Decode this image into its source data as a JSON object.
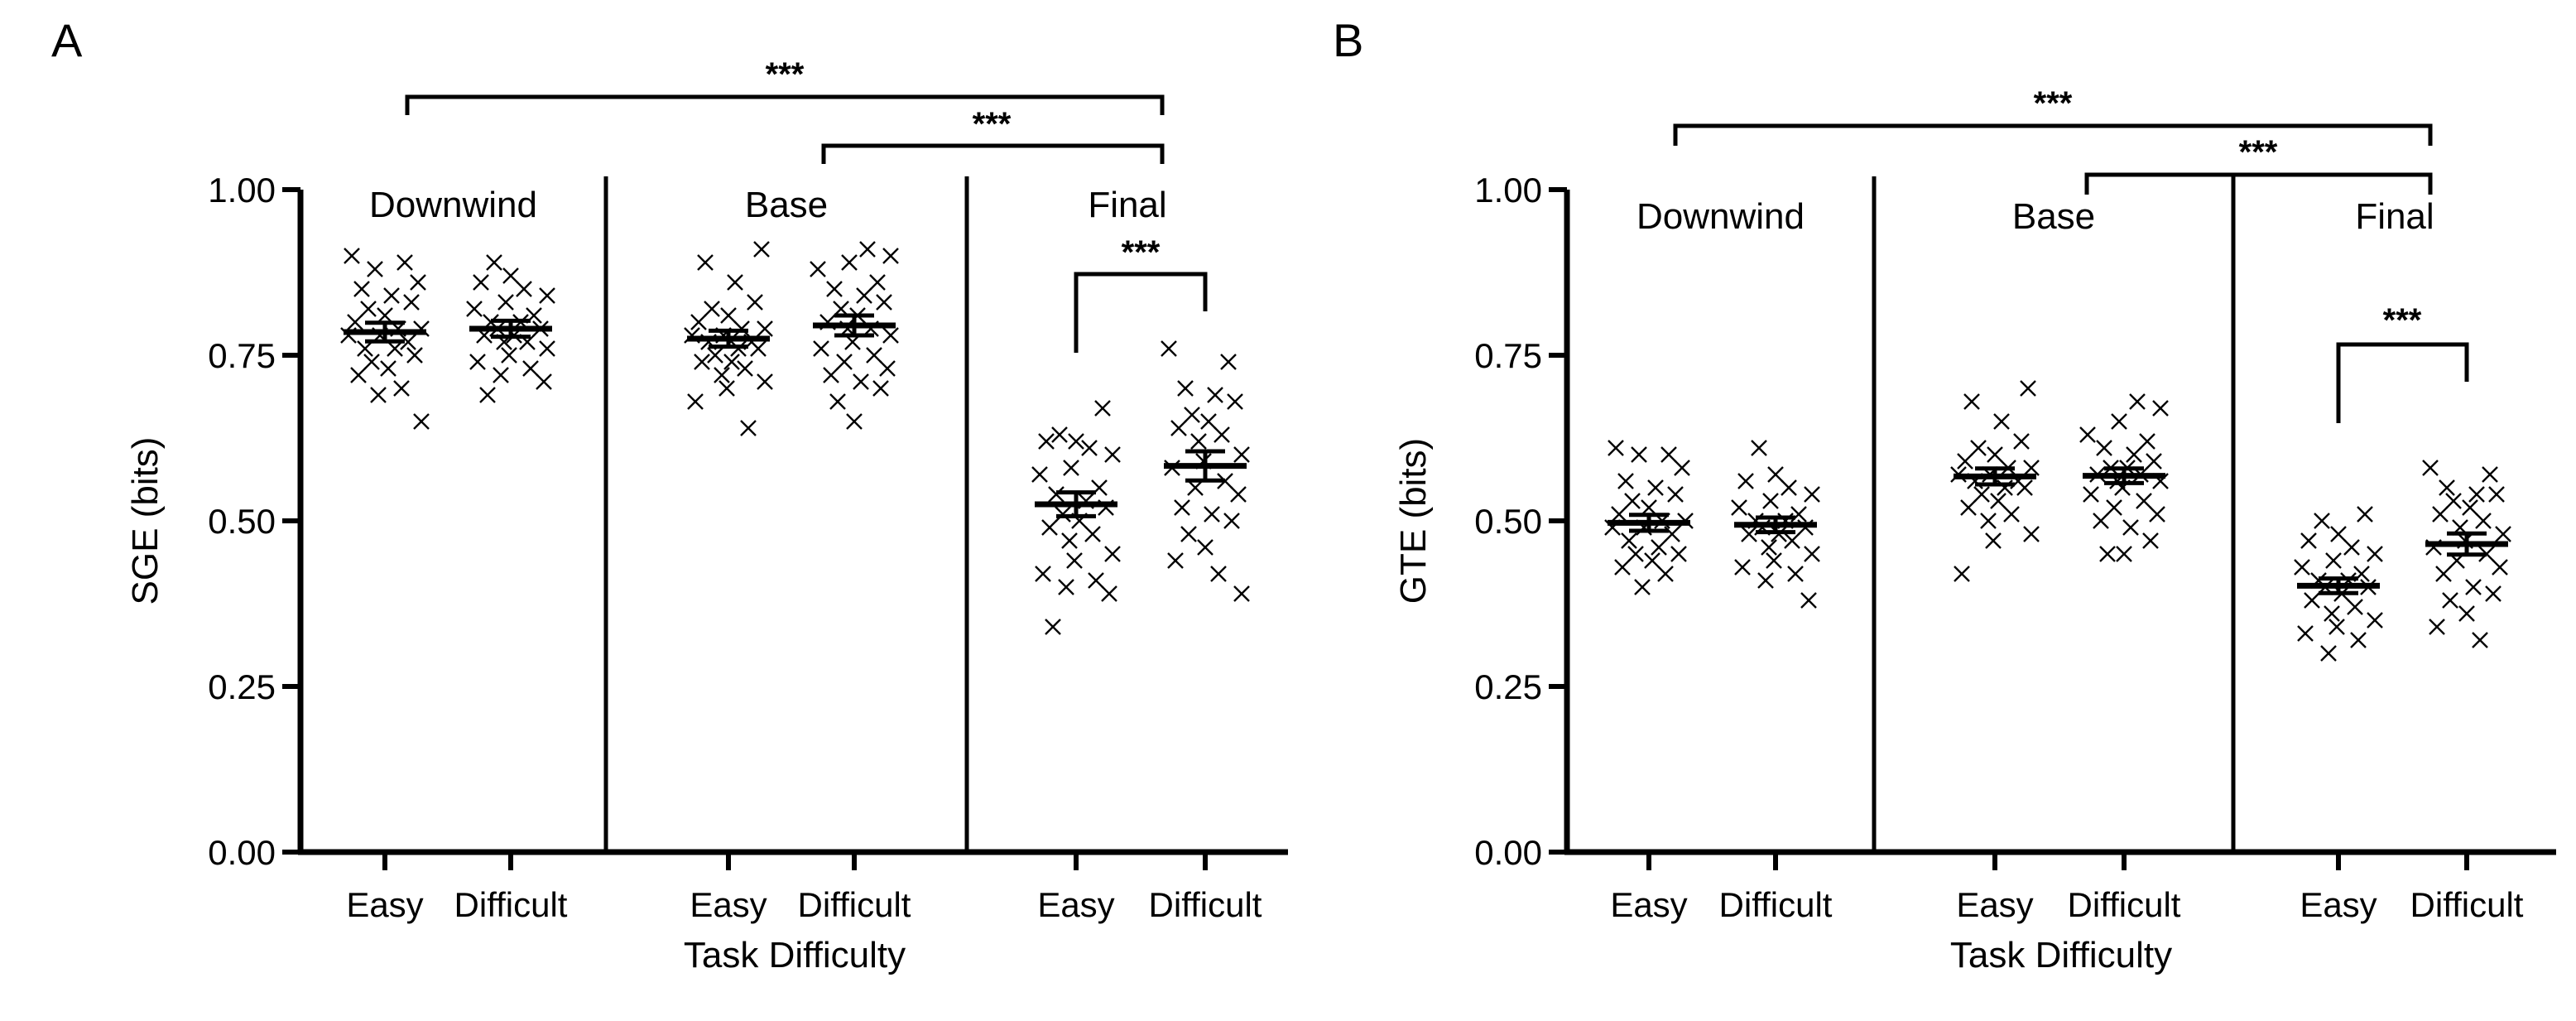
{
  "chart_data": [
    {
      "type": "scatter",
      "panel_label": "A",
      "ylabel": "SGE (bits)",
      "xlabel": "Task Difficulty",
      "ylim": [
        0,
        1
      ],
      "yticks": [
        "0.00",
        "0.25",
        "0.50",
        "0.75",
        "1.00"
      ],
      "segments": [
        {
          "name": "Downwind",
          "groups": [
            {
              "label": "Easy",
              "mean": 0.785,
              "sem": 0.014,
              "values": [
                0.9,
                0.89,
                0.88,
                0.86,
                0.85,
                0.84,
                0.83,
                0.82,
                0.81,
                0.8,
                0.79,
                0.79,
                0.78,
                0.78,
                0.77,
                0.76,
                0.76,
                0.75,
                0.74,
                0.73,
                0.72,
                0.7,
                0.69,
                0.65
              ]
            },
            {
              "label": "Difficult",
              "mean": 0.79,
              "sem": 0.012,
              "values": [
                0.89,
                0.87,
                0.86,
                0.85,
                0.84,
                0.83,
                0.82,
                0.81,
                0.8,
                0.8,
                0.79,
                0.79,
                0.78,
                0.78,
                0.77,
                0.77,
                0.76,
                0.75,
                0.74,
                0.73,
                0.72,
                0.71,
                0.69
              ]
            }
          ]
        },
        {
          "name": "Base",
          "groups": [
            {
              "label": "Easy",
              "mean": 0.775,
              "sem": 0.012,
              "values": [
                0.91,
                0.89,
                0.86,
                0.83,
                0.82,
                0.81,
                0.8,
                0.79,
                0.79,
                0.78,
                0.78,
                0.77,
                0.77,
                0.76,
                0.76,
                0.75,
                0.74,
                0.74,
                0.73,
                0.72,
                0.71,
                0.7,
                0.68,
                0.64
              ]
            },
            {
              "label": "Difficult",
              "mean": 0.795,
              "sem": 0.015,
              "values": [
                0.91,
                0.9,
                0.89,
                0.88,
                0.86,
                0.85,
                0.84,
                0.83,
                0.82,
                0.81,
                0.8,
                0.79,
                0.79,
                0.78,
                0.77,
                0.76,
                0.75,
                0.74,
                0.73,
                0.72,
                0.71,
                0.7,
                0.68,
                0.65
              ]
            }
          ]
        },
        {
          "name": "Final",
          "groups": [
            {
              "label": "Easy",
              "mean": 0.525,
              "sem": 0.018,
              "values": [
                0.67,
                0.63,
                0.62,
                0.62,
                0.61,
                0.6,
                0.58,
                0.57,
                0.55,
                0.54,
                0.53,
                0.52,
                0.51,
                0.5,
                0.49,
                0.48,
                0.47,
                0.45,
                0.44,
                0.42,
                0.41,
                0.4,
                0.39,
                0.34
              ]
            },
            {
              "label": "Difficult",
              "mean": 0.583,
              "sem": 0.022,
              "values": [
                0.76,
                0.74,
                0.7,
                0.69,
                0.68,
                0.66,
                0.65,
                0.64,
                0.63,
                0.62,
                0.6,
                0.59,
                0.58,
                0.56,
                0.55,
                0.54,
                0.52,
                0.51,
                0.5,
                0.48,
                0.46,
                0.44,
                0.42,
                0.39
              ]
            }
          ]
        }
      ],
      "significance": [
        {
          "label": "***",
          "from": "Downwind Easy",
          "to": "Final Difficult"
        },
        {
          "label": "***",
          "from": "Base Difficult",
          "to": "Final Difficult"
        },
        {
          "label": "***",
          "from": "Final Easy",
          "to": "Final Difficult"
        }
      ]
    },
    {
      "type": "scatter",
      "panel_label": "B",
      "ylabel": "GTE (bits)",
      "xlabel": "Task Difficulty",
      "ylim": [
        0,
        1
      ],
      "yticks": [
        "0.00",
        "0.25",
        "0.50",
        "0.75",
        "1.00"
      ],
      "segments": [
        {
          "name": "Downwind",
          "groups": [
            {
              "label": "Easy",
              "mean": 0.497,
              "sem": 0.012,
              "values": [
                0.61,
                0.6,
                0.6,
                0.58,
                0.56,
                0.55,
                0.54,
                0.53,
                0.52,
                0.51,
                0.5,
                0.5,
                0.49,
                0.49,
                0.48,
                0.47,
                0.46,
                0.45,
                0.45,
                0.44,
                0.43,
                0.42,
                0.4
              ]
            },
            {
              "label": "Difficult",
              "mean": 0.494,
              "sem": 0.011,
              "values": [
                0.61,
                0.57,
                0.56,
                0.55,
                0.54,
                0.53,
                0.52,
                0.51,
                0.5,
                0.5,
                0.49,
                0.49,
                0.48,
                0.48,
                0.47,
                0.46,
                0.45,
                0.44,
                0.43,
                0.42,
                0.41,
                0.38
              ]
            }
          ]
        },
        {
          "name": "Base",
          "groups": [
            {
              "label": "Easy",
              "mean": 0.567,
              "sem": 0.012,
              "values": [
                0.7,
                0.68,
                0.65,
                0.62,
                0.61,
                0.6,
                0.59,
                0.58,
                0.58,
                0.57,
                0.57,
                0.56,
                0.56,
                0.55,
                0.55,
                0.54,
                0.53,
                0.52,
                0.51,
                0.5,
                0.48,
                0.47,
                0.42
              ]
            },
            {
              "label": "Difficult",
              "mean": 0.568,
              "sem": 0.011,
              "values": [
                0.68,
                0.67,
                0.65,
                0.63,
                0.62,
                0.61,
                0.6,
                0.59,
                0.58,
                0.58,
                0.57,
                0.57,
                0.56,
                0.56,
                0.55,
                0.54,
                0.53,
                0.52,
                0.51,
                0.5,
                0.49,
                0.47,
                0.45,
                0.45
              ]
            }
          ]
        },
        {
          "name": "Final",
          "groups": [
            {
              "label": "Easy",
              "mean": 0.402,
              "sem": 0.011,
              "values": [
                0.51,
                0.5,
                0.48,
                0.47,
                0.46,
                0.45,
                0.44,
                0.43,
                0.42,
                0.41,
                0.41,
                0.4,
                0.4,
                0.39,
                0.38,
                0.37,
                0.36,
                0.35,
                0.34,
                0.33,
                0.32,
                0.3
              ]
            },
            {
              "label": "Difficult",
              "mean": 0.465,
              "sem": 0.016,
              "values": [
                0.58,
                0.57,
                0.55,
                0.54,
                0.54,
                0.53,
                0.52,
                0.51,
                0.5,
                0.49,
                0.48,
                0.47,
                0.46,
                0.45,
                0.44,
                0.43,
                0.42,
                0.4,
                0.39,
                0.38,
                0.36,
                0.34,
                0.32
              ]
            }
          ]
        }
      ],
      "significance": [
        {
          "label": "***",
          "from": "Downwind Easy",
          "to": "Final Difficult"
        },
        {
          "label": "***",
          "from": "Base Difficult",
          "to": "Final Difficult"
        },
        {
          "label": "***",
          "from": "Final Easy",
          "to": "Final Difficult"
        }
      ]
    }
  ]
}
